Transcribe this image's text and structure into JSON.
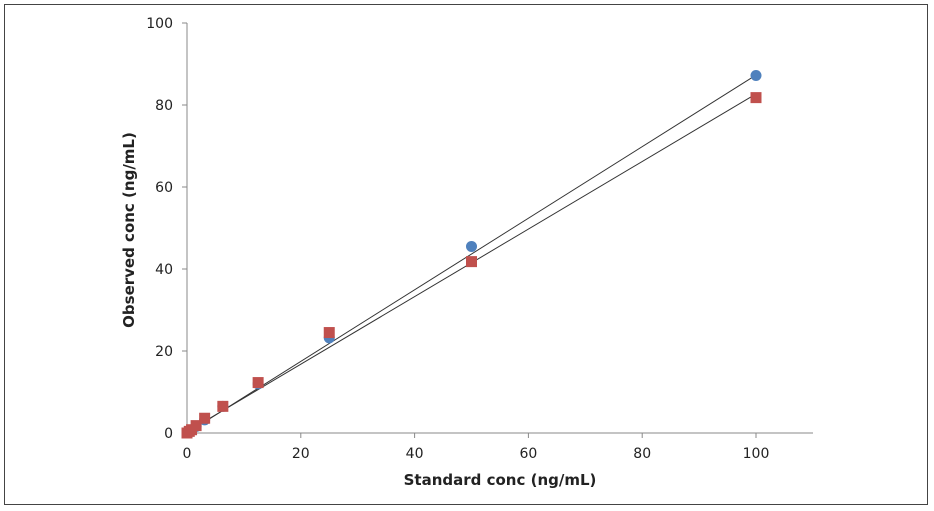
{
  "chart_data": {
    "type": "scatter",
    "title": "",
    "xlabel": "Standard conc (ng/mL)",
    "ylabel": "Observed conc (ng/mL)",
    "xlim": [
      0,
      110
    ],
    "ylim": [
      0,
      100
    ],
    "x_ticks": [
      "0",
      "20",
      "40",
      "60",
      "80",
      "100"
    ],
    "y_ticks": [
      "0",
      "20",
      "40",
      "60",
      "80",
      "100"
    ],
    "grid": false,
    "legend": "none",
    "series": [
      {
        "color": "#4f81bd",
        "marker": "circle",
        "points": [
          [
            0,
            0
          ],
          [
            0.4,
            0.4
          ],
          [
            0.8,
            0.8
          ],
          [
            1.6,
            1.6
          ],
          [
            3.1,
            3.2
          ],
          [
            6.3,
            6.5
          ],
          [
            12.5,
            12.0
          ],
          [
            25,
            23.2
          ],
          [
            50,
            45.5
          ],
          [
            100,
            87.2
          ]
        ],
        "trendline": {
          "slope": 0.873,
          "intercept": 0.0
        }
      },
      {
        "color": "#c0504d",
        "marker": "square",
        "points": [
          [
            0,
            0
          ],
          [
            0.4,
            0.4
          ],
          [
            0.8,
            0.8
          ],
          [
            1.6,
            1.8
          ],
          [
            3.1,
            3.6
          ],
          [
            6.3,
            6.5
          ],
          [
            12.5,
            12.3
          ],
          [
            25,
            24.5
          ],
          [
            50,
            41.8
          ],
          [
            100,
            81.8
          ]
        ],
        "trendline": {
          "slope": 0.824,
          "intercept": 0.3
        }
      }
    ]
  }
}
